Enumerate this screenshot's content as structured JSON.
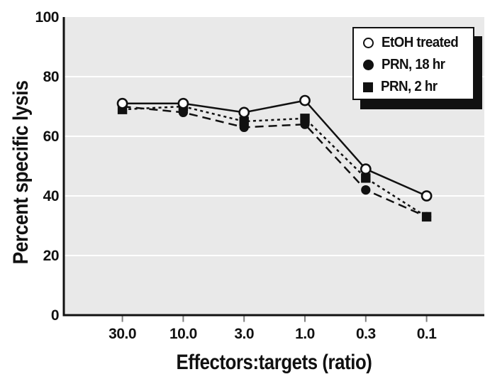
{
  "figure": {
    "background": "#ffffff",
    "plot_background": "#e9e9e9",
    "axis_color": "#111111",
    "grid_color": "#ffffff",
    "tick_color": "#7f7f7f",
    "text_color": "#111111"
  },
  "chart_data": {
    "type": "line",
    "title": "",
    "xlabel": "Effectors:targets (ratio)",
    "ylabel": "Percent specific lysis",
    "categories": [
      "30.0",
      "10.0",
      "3.0",
      "1.0",
      "0.3",
      "0.1"
    ],
    "ylim": [
      0,
      100
    ],
    "yticks": [
      0,
      20,
      40,
      60,
      80,
      100
    ],
    "gridlines": [
      20,
      40,
      60,
      80
    ],
    "grid": "horizontal-white-lines-on-gray",
    "legend_position": "top-right",
    "legend_style": "white box, black border, solid black drop shadow",
    "series": [
      {
        "name": "EtOH treated",
        "marker": "open-circle",
        "line_style": "solid",
        "values": [
          71,
          71,
          68,
          72,
          49,
          40
        ]
      },
      {
        "name": "PRN, 18 hr",
        "marker": "filled-circle",
        "line_style": "long-dash",
        "values": [
          70,
          68,
          63,
          64,
          42,
          33
        ]
      },
      {
        "name": "PRN, 2 hr",
        "marker": "filled-square",
        "line_style": "dotted",
        "values": [
          69,
          70,
          65,
          66,
          46,
          33
        ]
      }
    ]
  }
}
